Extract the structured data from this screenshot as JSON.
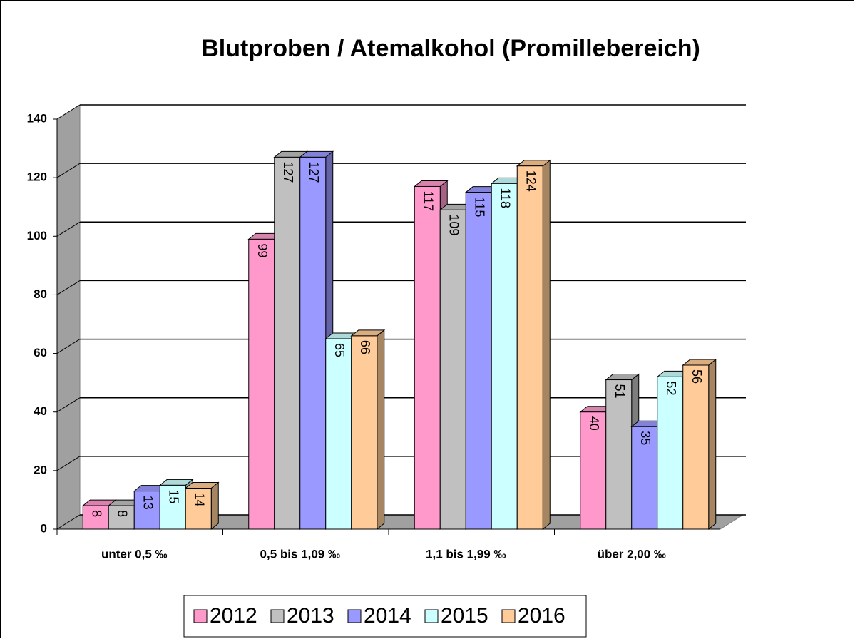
{
  "chart_data": {
    "type": "bar3d",
    "title": "Blutproben / Atemalkohol (Promillebereich)",
    "categories": [
      "unter 0,5 ‰",
      "0,5 bis 1,09 ‰",
      "1,1 bis 1,99 ‰",
      "über 2,00 ‰"
    ],
    "series": [
      {
        "name": "2012",
        "color": "#ff99cc",
        "values": [
          8,
          99,
          117,
          40
        ]
      },
      {
        "name": "2013",
        "color": "#c0c0c0",
        "values": [
          8,
          127,
          109,
          51
        ]
      },
      {
        "name": "2014",
        "color": "#9999ff",
        "values": [
          13,
          127,
          115,
          35
        ]
      },
      {
        "name": "2015",
        "color": "#ccffff",
        "values": [
          15,
          65,
          118,
          52
        ]
      },
      {
        "name": "2016",
        "color": "#ffcc99",
        "values": [
          14,
          66,
          124,
          56
        ]
      }
    ],
    "ylim": [
      0,
      140
    ],
    "yticks": [
      0,
      20,
      40,
      60,
      80,
      100,
      120,
      140
    ],
    "grid": true,
    "legend": "bottom"
  }
}
